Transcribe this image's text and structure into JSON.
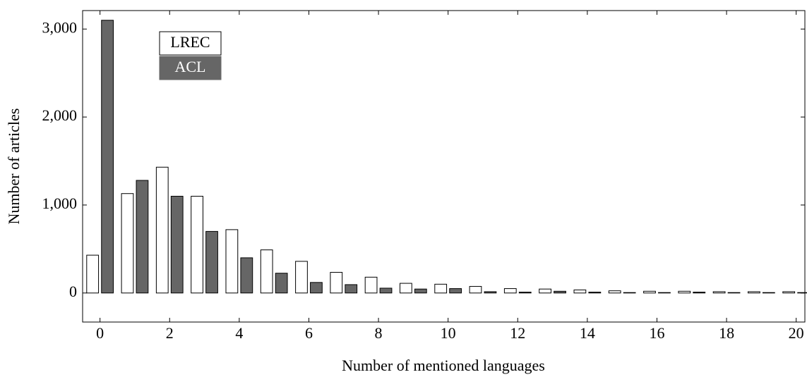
{
  "chart_data": {
    "type": "bar",
    "x_label": "Number of mentioned languages",
    "y_label": "Number of articles",
    "x": [
      0,
      1,
      2,
      3,
      4,
      5,
      6,
      7,
      8,
      9,
      10,
      11,
      12,
      13,
      14,
      15,
      16,
      17,
      18,
      19,
      20
    ],
    "series": [
      {
        "name": "LREC",
        "color": "#ffffff",
        "values": [
          430,
          1130,
          1430,
          1100,
          720,
          490,
          360,
          235,
          180,
          110,
          100,
          75,
          50,
          45,
          35,
          25,
          20,
          20,
          15,
          15,
          15
        ]
      },
      {
        "name": "ACL",
        "color": "#666666",
        "values": [
          3100,
          1280,
          1100,
          700,
          400,
          225,
          120,
          95,
          55,
          45,
          50,
          15,
          10,
          20,
          10,
          5,
          5,
          10,
          5,
          5,
          5
        ]
      }
    ],
    "xlim": [
      -0.5,
      20.25
    ],
    "ylim": [
      -330,
      3210
    ],
    "xticks": [
      0,
      2,
      4,
      6,
      8,
      10,
      12,
      14,
      16,
      18,
      20
    ],
    "yticks": [
      0,
      {
        "value": 1000,
        "label": "1,000"
      },
      {
        "value": 2000,
        "label": "2,000"
      },
      {
        "value": 3000,
        "label": "3,000"
      }
    ],
    "legend": "upper left",
    "grid": false
  }
}
